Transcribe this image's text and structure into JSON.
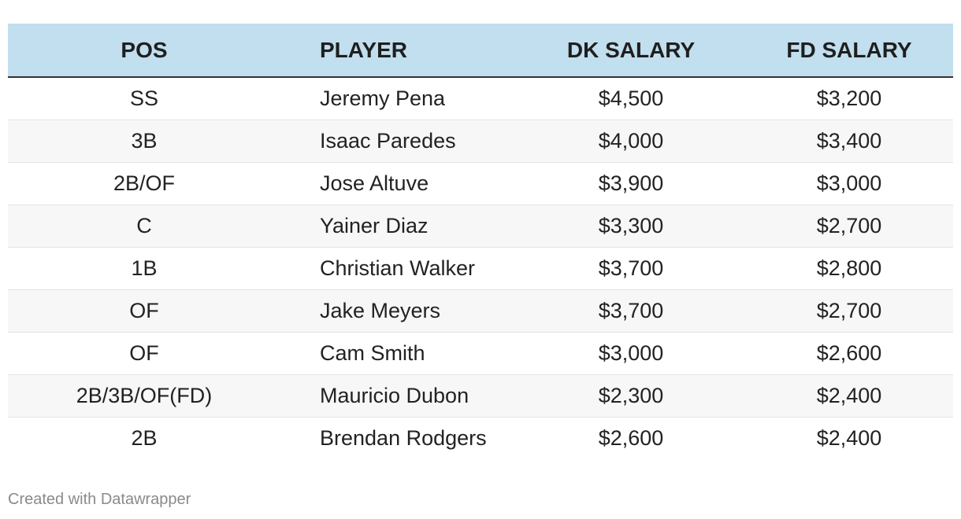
{
  "chart_data": {
    "type": "table",
    "columns": [
      "POS",
      "PLAYER",
      "DK SALARY",
      "FD SALARY"
    ],
    "rows": [
      [
        "SS",
        "Jeremy Pena",
        "$4,500",
        "$3,200"
      ],
      [
        "3B",
        "Isaac Paredes",
        "$4,000",
        "$3,400"
      ],
      [
        "2B/OF",
        "Jose Altuve",
        "$3,900",
        "$3,000"
      ],
      [
        "C",
        "Yainer Diaz",
        "$3,300",
        "$2,700"
      ],
      [
        "1B",
        "Christian Walker",
        "$3,700",
        "$2,800"
      ],
      [
        "OF",
        "Jake Meyers",
        "$3,700",
        "$2,700"
      ],
      [
        "OF",
        "Cam Smith",
        "$3,000",
        "$2,600"
      ],
      [
        "2B/3B/OF(FD)",
        "Mauricio Dubon",
        "$2,300",
        "$2,400"
      ],
      [
        "2B",
        "Brendan Rodgers",
        "$2,600",
        "$2,400"
      ]
    ],
    "header_color": "#c1dfee",
    "striped_row_color": "#f7f7f7"
  },
  "footer": {
    "credit": "Created with Datawrapper"
  }
}
